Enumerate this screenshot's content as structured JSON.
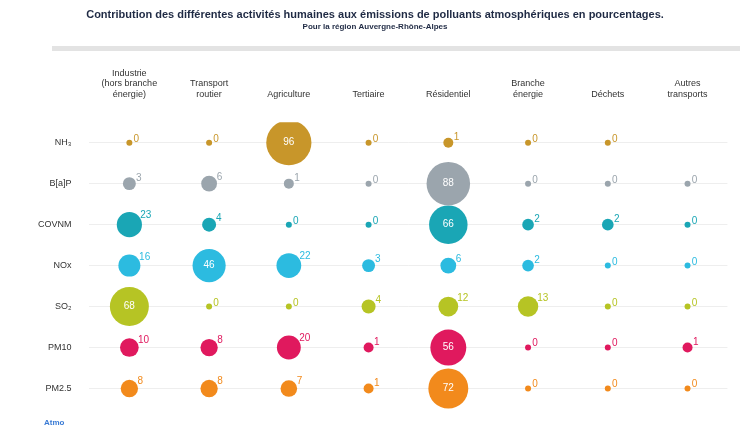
{
  "chart_data": {
    "type": "bubble",
    "title": "Contribution des différentes activités humaines aux émissions de polluants atmosphériques en pourcentages.",
    "subtitle": "Pour la région Auvergne-Rhône-Alpes",
    "logo_text": "Atmo",
    "categories": [
      "Industrie (hors branche énergie)",
      "Transport routier",
      "Agriculture",
      "Tertiaire",
      "Résidentiel",
      "Branche énergie",
      "Déchets",
      "Autres transports"
    ],
    "series": [
      {
        "name": "NH₃",
        "color": "#c8962a",
        "values": [
          0,
          0,
          96,
          0,
          1,
          0,
          0,
          null
        ]
      },
      {
        "name": "B[a]P",
        "color": "#9ba5ad",
        "values": [
          3,
          6,
          1,
          0,
          88,
          0,
          0,
          0
        ]
      },
      {
        "name": "COVNM",
        "color": "#1aa6b5",
        "values": [
          23,
          4,
          0,
          0,
          66,
          2,
          2,
          0
        ]
      },
      {
        "name": "NOx",
        "color": "#2cbbe0",
        "values": [
          16,
          46,
          22,
          3,
          6,
          2,
          0,
          0
        ]
      },
      {
        "name": "SO₂",
        "color": "#b6c424",
        "values": [
          68,
          0,
          0,
          4,
          12,
          13,
          0,
          0
        ]
      },
      {
        "name": "PM10",
        "color": "#e0195e",
        "values": [
          10,
          8,
          20,
          1,
          56,
          0,
          0,
          1
        ]
      },
      {
        "name": "PM2.5",
        "color": "#f28a1c",
        "values": [
          8,
          8,
          7,
          1,
          72,
          0,
          0,
          0
        ]
      }
    ],
    "data_labels": true,
    "grid": true
  }
}
